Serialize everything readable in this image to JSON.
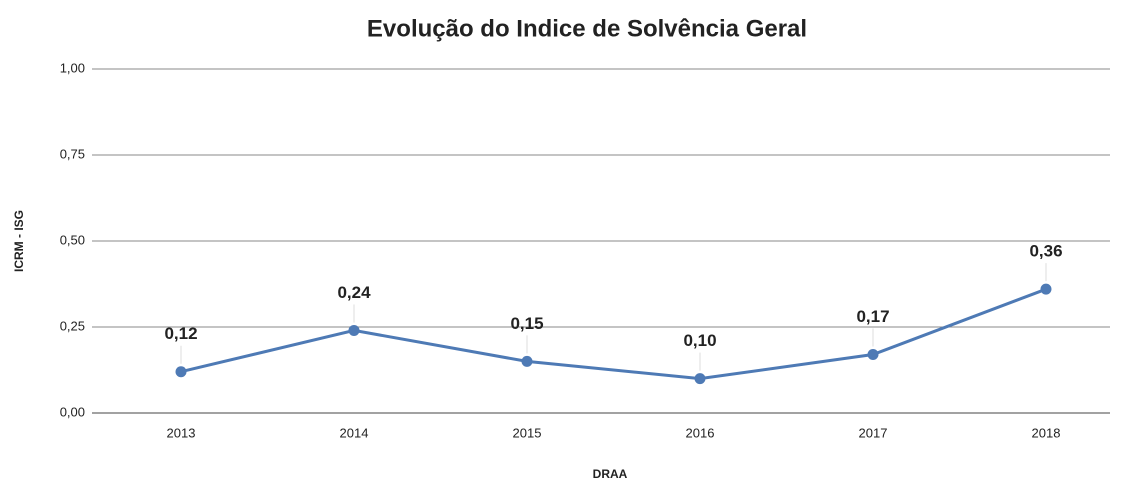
{
  "chart_data": {
    "type": "line",
    "title": "Evolução do Indice de Solvência Geral",
    "x_label": "DRAA",
    "y_label": "ICRM - ISG",
    "categories": [
      "2013",
      "2014",
      "2015",
      "2016",
      "2017",
      "2018"
    ],
    "series": [
      {
        "name": "ICRM - ISG",
        "color": "#4e7ab5",
        "values": [
          0.12,
          0.24,
          0.15,
          0.1,
          0.17,
          0.36
        ],
        "value_labels": [
          "0,12",
          "0,24",
          "0,15",
          "0,10",
          "0,17",
          "0,36"
        ]
      }
    ],
    "ylim": [
      0,
      1
    ],
    "yticks": [
      {
        "value": 0,
        "label": "0,00"
      },
      {
        "value": 0.25,
        "label": "0,25"
      },
      {
        "value": 0.5,
        "label": "0,50"
      },
      {
        "value": 0.75,
        "label": "0,75"
      },
      {
        "value": 1,
        "label": "1,00"
      }
    ],
    "grid": true
  }
}
